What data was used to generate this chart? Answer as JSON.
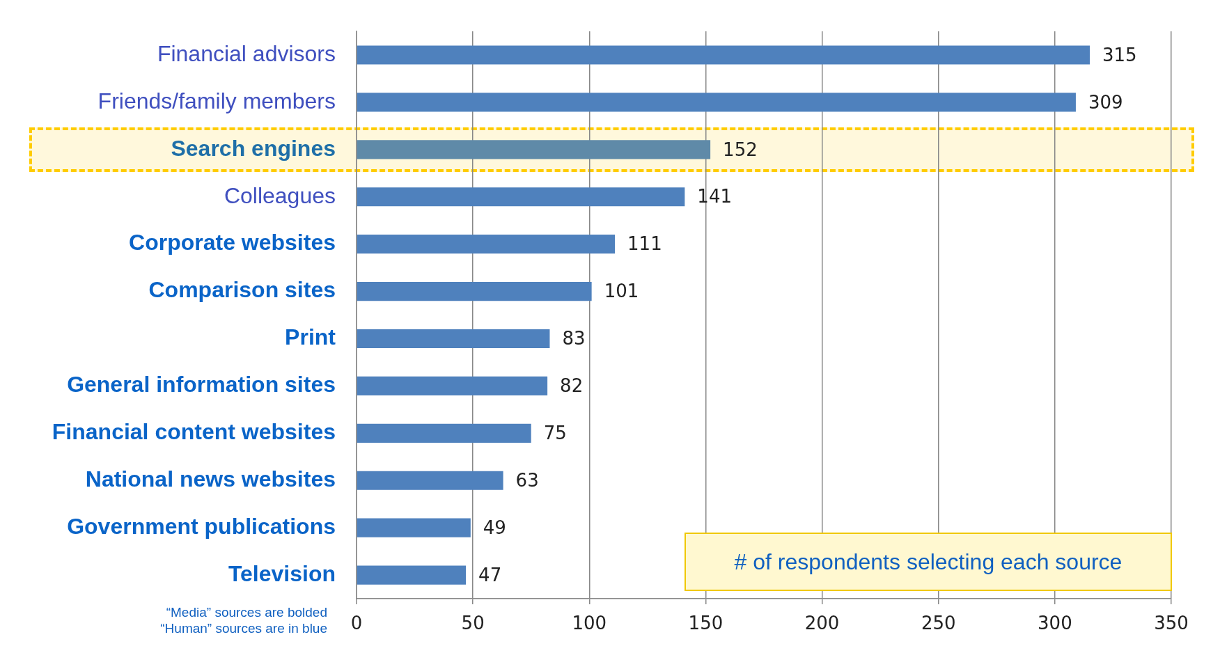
{
  "chart_data": {
    "type": "bar",
    "orientation": "horizontal",
    "categories": [
      "Financial advisors",
      "Friends/family members",
      "Search engines",
      "Colleagues",
      "Corporate websites",
      "Comparison sites",
      "Print",
      "General information sites",
      "Financial content websites",
      "National news websites",
      "Government publications",
      "Television"
    ],
    "values": [
      315,
      309,
      152,
      141,
      111,
      101,
      83,
      82,
      75,
      63,
      49,
      47
    ],
    "colors": [
      "#4f81bd",
      "#4f81bd",
      "#5f8aa8",
      "#4f81bd",
      "#4f81bd",
      "#4f81bd",
      "#4f81bd",
      "#4f81bd",
      "#4f81bd",
      "#4f81bd",
      "#4f81bd",
      "#4f81bd"
    ],
    "xlim": [
      0,
      350
    ],
    "xticks": [
      0,
      50,
      100,
      150,
      200,
      250,
      300,
      350
    ],
    "bands": [
      {
        "axis": "y",
        "from": "Search engines",
        "to": "Search engines",
        "color": "#fff8dc"
      }
    ],
    "grid": "x",
    "legend": false,
    "data_labels": true,
    "annotations": [
      "# of respondents selecting each source",
      "“Media” sources are bolded",
      "“Human” sources are in blue"
    ]
  }
}
